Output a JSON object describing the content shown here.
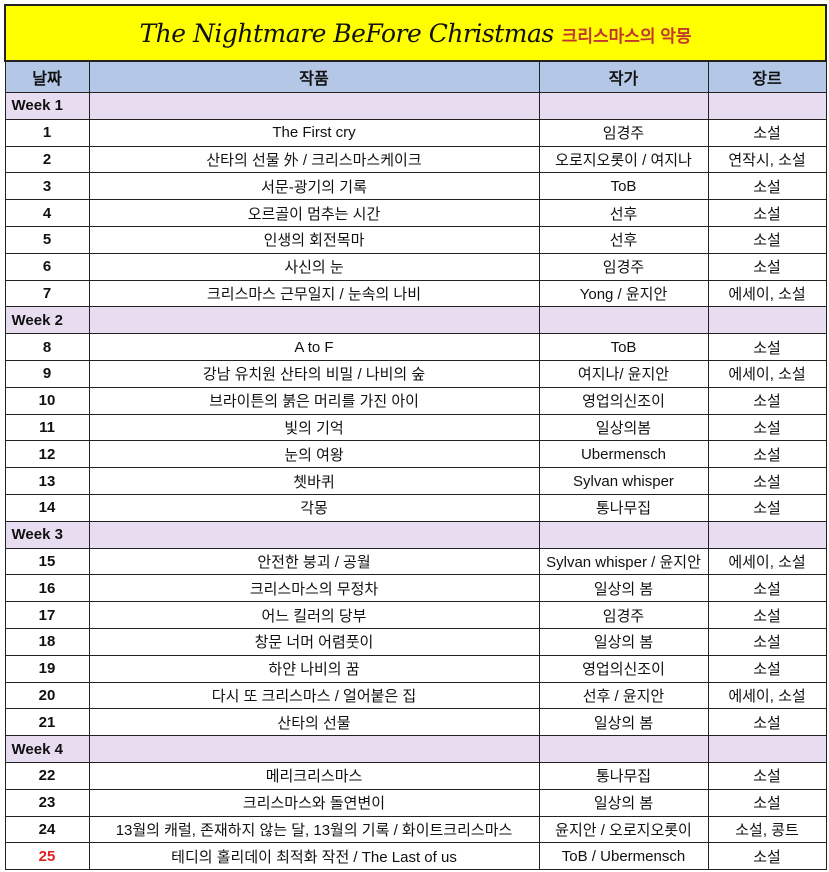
{
  "title": {
    "english": "The Nightmare BeFore Christmas",
    "korean": "크리스마스의 악몽"
  },
  "headers": {
    "date": "날짜",
    "work": "작품",
    "author": "작가",
    "genre": "장르"
  },
  "colors": {
    "title_bg": "#ffff00",
    "header_bg": "#b4c7e7",
    "week_bg": "#e8ddf0",
    "highlight_day": "#e02020"
  },
  "rows": [
    {
      "week": "Week 1"
    },
    {
      "day": "1",
      "title": "The First cry",
      "author": "임경주",
      "genre": "소설"
    },
    {
      "day": "2",
      "title": "산타의 선물 外 / 크리스마스케이크",
      "author": "오로지오롯이 / 여지나",
      "genre": "연작시, 소설"
    },
    {
      "day": "3",
      "title": "서문-광기의 기록",
      "author": "ToB",
      "genre": "소설"
    },
    {
      "day": "4",
      "title": "오르골이 멈추는 시간",
      "author": "선후",
      "genre": "소설"
    },
    {
      "day": "5",
      "title": "인생의 회전목마",
      "author": "선후",
      "genre": "소설"
    },
    {
      "day": "6",
      "title": "사신의 눈",
      "author": "임경주",
      "genre": "소설"
    },
    {
      "day": "7",
      "title": "크리스마스 근무일지 / 눈속의 나비",
      "author": "Yong / 윤지안",
      "genre": "에세이, 소설"
    },
    {
      "week": "Week 2"
    },
    {
      "day": "8",
      "title": "A to F",
      "author": "ToB",
      "genre": "소설"
    },
    {
      "day": "9",
      "title": "강남 유치원 산타의 비밀 / 나비의 숲",
      "author": "여지나/ 윤지안",
      "genre": "에세이, 소설"
    },
    {
      "day": "10",
      "title": "브라이튼의 붉은 머리를 가진 아이",
      "author": "영업의신조이",
      "genre": "소설"
    },
    {
      "day": "11",
      "title": "빛의 기억",
      "author": "일상의봄",
      "genre": "소설"
    },
    {
      "day": "12",
      "title": "눈의 여왕",
      "author": "Ubermensch",
      "genre": "소설"
    },
    {
      "day": "13",
      "title": "쳇바퀴",
      "author": "Sylvan whisper",
      "genre": "소설"
    },
    {
      "day": "14",
      "title": "각몽",
      "author": "통나무집",
      "genre": "소설"
    },
    {
      "week": "Week 3"
    },
    {
      "day": "15",
      "title": "안전한 붕괴 / 공월",
      "author": "Sylvan whisper / 윤지안",
      "genre": "에세이, 소설"
    },
    {
      "day": "16",
      "title": "크리스마스의 무정차",
      "author": "일상의 봄",
      "genre": "소설"
    },
    {
      "day": "17",
      "title": "어느 킬러의 당부",
      "author": "임경주",
      "genre": "소설"
    },
    {
      "day": "18",
      "title": "창문 너머 어렴풋이",
      "author": "일상의 봄",
      "genre": "소설"
    },
    {
      "day": "19",
      "title": "하얀 나비의 꿈",
      "author": "영업의신조이",
      "genre": "소설"
    },
    {
      "day": "20",
      "title": "다시 또 크리스마스 / 얼어붙은 집",
      "author": "선후 / 윤지안",
      "genre": "에세이, 소설"
    },
    {
      "day": "21",
      "title": "산타의 선물",
      "author": "일상의 봄",
      "genre": "소설"
    },
    {
      "week": "Week 4"
    },
    {
      "day": "22",
      "title": "메리크리스마스",
      "author": "통나무집",
      "genre": "소설"
    },
    {
      "day": "23",
      "title": "크리스마스와 돌연변이",
      "author": "일상의 봄",
      "genre": "소설"
    },
    {
      "day": "24",
      "title": "13월의 캐럴, 존재하지 않는 달, 13월의 기록 / 화이트크리스마스",
      "author": "윤지안 / 오로지오롯이",
      "genre": "소설, 콩트"
    },
    {
      "day": "25",
      "title": "테디의 홀리데이 최적화 작전 / The Last of us",
      "author": "ToB / Ubermensch",
      "genre": "소설",
      "highlight": true
    }
  ]
}
